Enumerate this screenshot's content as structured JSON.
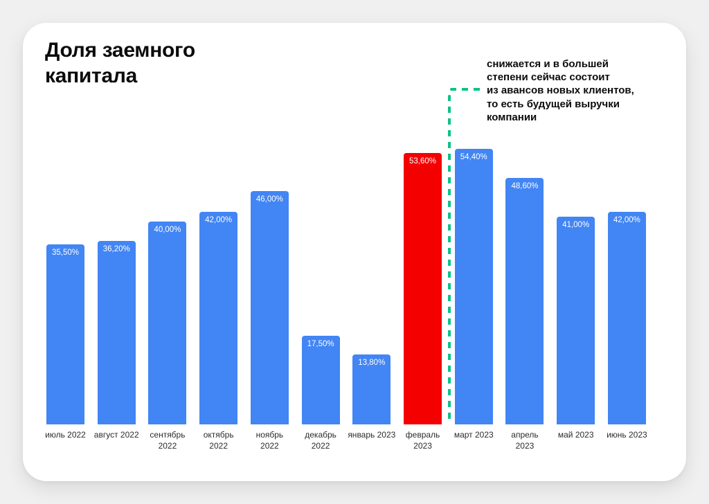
{
  "page": {
    "background_color": "#f0f0f1",
    "card_color": "#ffffff"
  },
  "header": {
    "title": "Доля заемного капитала"
  },
  "annotation": {
    "text": "снижается и в большей\nстепени сейчас состоит\nиз авансов новых клиентов,\nто есть будущей выручки\nкомпании",
    "connector_color": "#0dc286"
  },
  "chart_data": {
    "type": "bar",
    "title": "Доля заемного капитала",
    "unit": "percent",
    "categories": [
      "июль 2022",
      "август 2022",
      "сентябрь 2022",
      "октябрь 2022",
      "ноябрь 2022",
      "декабрь 2022",
      "январь 2023",
      "февраль 2023",
      "март 2023",
      "апрель 2023",
      "май 2023",
      "июнь 2023"
    ],
    "values": [
      35.5,
      36.2,
      40.0,
      42.0,
      46.0,
      17.5,
      13.8,
      53.6,
      54.4,
      48.6,
      41.0,
      42.0
    ],
    "value_labels": [
      "35,50%",
      "36,20%",
      "40,00%",
      "42,00%",
      "46,00%",
      "17,50%",
      "13,80%",
      "53,60%",
      "54,40%",
      "48,60%",
      "41,00%",
      "42,00%"
    ],
    "tick_labels": [
      "июль 2022",
      "август 2022",
      "сентябрь\n2022",
      "октябрь\n2022",
      "ноябрь\n2022",
      "декабрь\n2022",
      "январь 2023",
      "февраль\n2023",
      "март 2023",
      "апрель\n2023",
      "май 2023",
      "июнь 2023"
    ],
    "highlight_index": 7,
    "bar_color": "#4285f4",
    "highlight_color": "#f50000",
    "value_label_color": "#ffffff",
    "tick_label_color": "#2b2b2b",
    "ylim": [
      0,
      57
    ],
    "grid": false,
    "legend": false
  }
}
